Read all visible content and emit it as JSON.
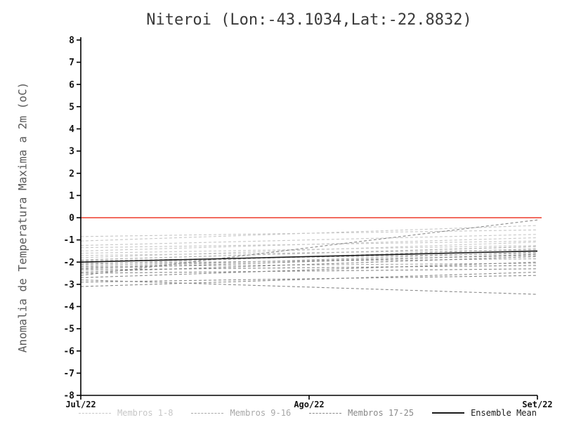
{
  "chart_data": {
    "type": "line",
    "title": "Niteroi (Lon:-43.1034,Lat:-22.8832)",
    "ylabel": "Anomalia de Temperatura Maxima a 2m (oC)",
    "xticks": [
      "Jul/22",
      "Ago/22",
      "Set/22"
    ],
    "ylim": [
      -8,
      8
    ],
    "yticks": [
      8,
      7,
      6,
      5,
      4,
      3,
      2,
      1,
      0,
      -1,
      -2,
      -3,
      -4,
      -5,
      -6,
      -7,
      -8
    ],
    "grid": "off",
    "legend_position": "bottom",
    "zero_line": {
      "value": 0,
      "color": "#ee3a2c"
    },
    "series_groups": [
      {
        "name": "Membros 1-8",
        "color": "#c7c7c7",
        "dashed": true,
        "members": [
          [
            -0.85,
            -0.55
          ],
          [
            -1.05,
            -0.35
          ],
          [
            -1.25,
            -0.75
          ],
          [
            -1.35,
            -1.05
          ],
          [
            -1.5,
            -0.9
          ],
          [
            -1.6,
            -1.25
          ],
          [
            -1.7,
            -1.45
          ],
          [
            -1.8,
            -1.1
          ]
        ]
      },
      {
        "name": "Membros 9-16",
        "color": "#a8a8a8",
        "dashed": true,
        "members": [
          [
            -1.9,
            -1.3
          ],
          [
            -1.95,
            -1.6
          ],
          [
            -2.0,
            -1.5
          ],
          [
            -2.05,
            -1.85
          ],
          [
            -2.1,
            -1.4
          ],
          [
            -2.15,
            -1.7
          ],
          [
            -2.2,
            -2.05
          ],
          [
            -2.25,
            -1.55
          ]
        ]
      },
      {
        "name": "Membros 17-25",
        "color": "#898989",
        "dashed": true,
        "members": [
          [
            -2.3,
            -1.65
          ],
          [
            -2.35,
            -2.15
          ],
          [
            -2.45,
            -1.75
          ],
          [
            -2.5,
            -2.3
          ],
          [
            -2.6,
            -0.1
          ],
          [
            -2.7,
            -2.0
          ],
          [
            -2.8,
            -3.45
          ],
          [
            -2.9,
            -2.6
          ],
          [
            -3.1,
            -2.45
          ]
        ]
      }
    ],
    "ensemble_mean": {
      "name": "Ensemble Mean",
      "color": "#1a1a1a",
      "values": [
        -2.0,
        -1.75,
        -1.5
      ]
    }
  }
}
